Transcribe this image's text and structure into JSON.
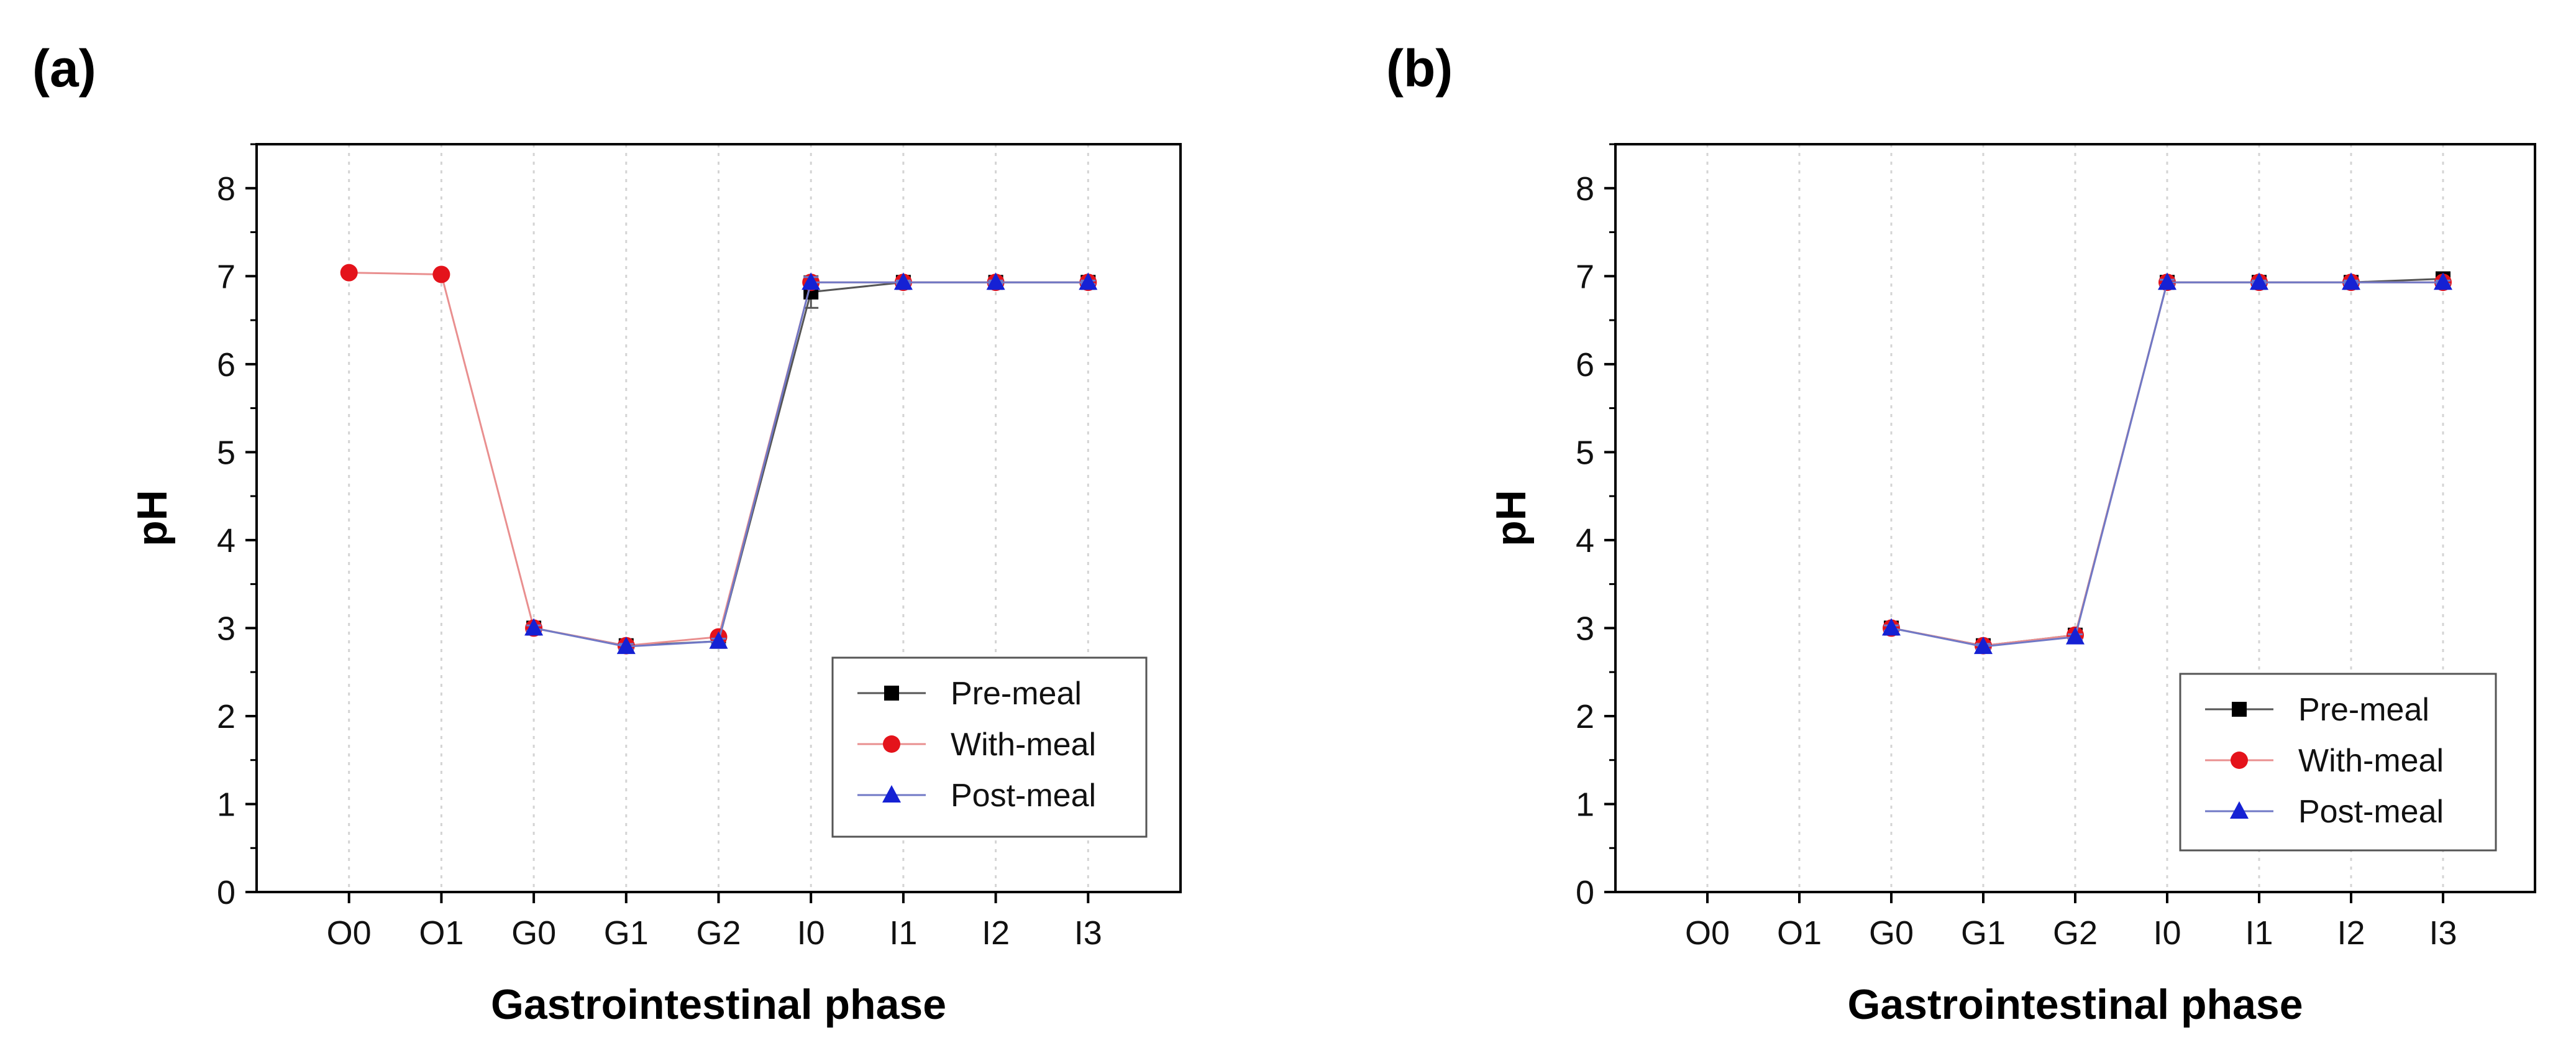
{
  "chart_data": [
    {
      "panel_label": "(a)",
      "type": "line",
      "title": "",
      "xlabel": "Gastrointestinal phase",
      "ylabel": "pH",
      "categories": [
        "O0",
        "O1",
        "G0",
        "G1",
        "G2",
        "I0",
        "I1",
        "I2",
        "I3"
      ],
      "ylim": [
        0,
        8.5
      ],
      "yticks": [
        0,
        1,
        2,
        3,
        4,
        5,
        6,
        7,
        8
      ],
      "grid": "vertical dotted",
      "legend_position": "bottom-right",
      "series": [
        {
          "name": "Pre-meal",
          "marker": "square",
          "color": "#000000",
          "line_color": "#555555",
          "values": [
            null,
            null,
            3.0,
            2.8,
            2.85,
            6.82,
            6.93,
            6.93,
            6.93
          ],
          "errors": [
            null,
            null,
            0.03,
            0.03,
            0.03,
            0.18,
            0.03,
            0.02,
            0.02
          ]
        },
        {
          "name": "With-meal",
          "marker": "circle",
          "color": "#e4131b",
          "line_color": "#e98f8f",
          "values": [
            7.04,
            7.02,
            3.0,
            2.8,
            2.9,
            6.93,
            6.93,
            6.93,
            6.93
          ],
          "errors": [
            0.02,
            0.02,
            0.03,
            0.03,
            0.03,
            0.03,
            0.02,
            0.02,
            0.02
          ]
        },
        {
          "name": "Post-meal",
          "marker": "triangle",
          "color": "#1521d4",
          "line_color": "#7078c6",
          "values": [
            null,
            null,
            3.0,
            2.79,
            2.85,
            6.93,
            6.93,
            6.93,
            6.93
          ],
          "errors": [
            null,
            null,
            0.03,
            0.03,
            0.03,
            0.06,
            0.02,
            0.02,
            0.02
          ]
        }
      ]
    },
    {
      "panel_label": "(b)",
      "type": "line",
      "title": "",
      "xlabel": "Gastrointestinal phase",
      "ylabel": "pH",
      "categories": [
        "O0",
        "O1",
        "G0",
        "G1",
        "G2",
        "I0",
        "I1",
        "I2",
        "I3"
      ],
      "ylim": [
        0,
        8.5
      ],
      "yticks": [
        0,
        1,
        2,
        3,
        4,
        5,
        6,
        7,
        8
      ],
      "grid": "vertical dotted",
      "legend_position": "bottom-right",
      "series": [
        {
          "name": "Pre-meal",
          "marker": "square",
          "color": "#000000",
          "line_color": "#555555",
          "values": [
            null,
            null,
            3.0,
            2.8,
            2.92,
            6.93,
            6.93,
            6.93,
            6.97
          ],
          "errors": [
            null,
            null,
            0.03,
            0.03,
            0.03,
            0.03,
            0.02,
            0.02,
            0.02
          ]
        },
        {
          "name": "With-meal",
          "marker": "circle",
          "color": "#e4131b",
          "line_color": "#e98f8f",
          "values": [
            null,
            null,
            3.0,
            2.8,
            2.92,
            6.93,
            6.93,
            6.93,
            6.93
          ],
          "errors": [
            null,
            null,
            0.03,
            0.03,
            0.03,
            0.03,
            0.02,
            0.02,
            0.02
          ]
        },
        {
          "name": "Post-meal",
          "marker": "triangle",
          "color": "#1521d4",
          "line_color": "#7078c6",
          "values": [
            null,
            null,
            3.0,
            2.79,
            2.9,
            6.93,
            6.93,
            6.93,
            6.93
          ],
          "errors": [
            null,
            null,
            0.03,
            0.03,
            0.03,
            0.03,
            0.02,
            0.02,
            0.02
          ]
        }
      ]
    }
  ]
}
